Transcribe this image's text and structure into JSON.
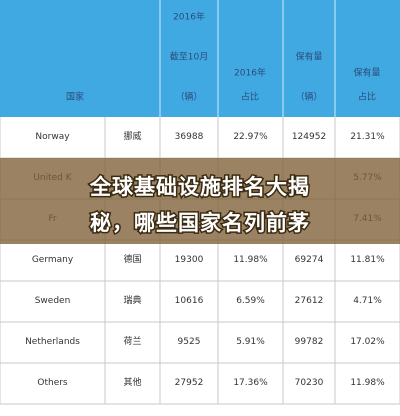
{
  "table": {
    "header": [
      [
        "国家"
      ],
      [],
      [
        "2016年",
        "截至10月",
        "（辆）"
      ],
      [
        "2016年",
        "占比"
      ],
      [
        "保有量",
        "（辆）"
      ],
      [
        "保有量",
        "占比"
      ]
    ],
    "rows": [
      [
        "Norway",
        "挪威",
        "36988",
        "22.97%",
        "124952",
        "21.31%"
      ],
      [
        "United K",
        null,
        null,
        null,
        null,
        "5.77%"
      ],
      [
        "Fr",
        null,
        null,
        null,
        null,
        "7.41%"
      ],
      [
        "Germany",
        "德国",
        "19300",
        "11.98%",
        "69274",
        "11.81%"
      ],
      [
        "Sweden",
        "瑞典",
        "10616",
        "6.59%",
        "27612",
        "4.71%"
      ],
      [
        "Netherlands",
        "荷兰",
        "9525",
        "5.91%",
        "99782",
        "17.02%"
      ],
      [
        "Others",
        "其他",
        "27952",
        "17.36%",
        "70230",
        "11.98%"
      ]
    ]
  },
  "banner": {
    "lines": [
      "全球基础设施排名大揭",
      "秘，哪些国家名列前茅"
    ]
  }
}
